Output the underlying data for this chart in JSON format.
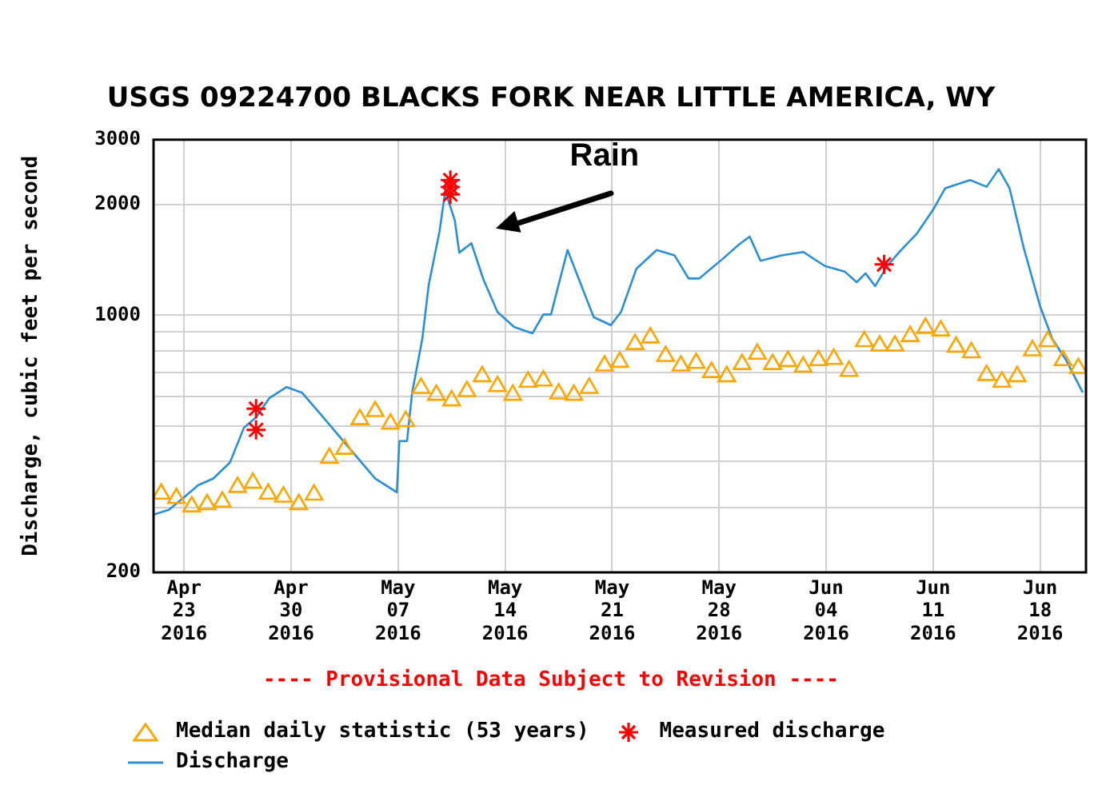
{
  "chart_data": {
    "type": "line",
    "title": "USGS 09224700 BLACKS FORK NEAR LITTLE AMERICA, WY",
    "ylabel": "Discharge, cubic feet per second",
    "annotations": [
      "Rain",
      "---- Provisional Data Subject to Revision ----"
    ],
    "log": true,
    "grid": true,
    "legend": "bottom",
    "xlim": [
      "2016-04-21",
      "2016-06-21"
    ],
    "xticks": [
      {
        "value": "2016-04-23",
        "label": "Apr 23 2016"
      },
      {
        "value": "2016-04-30",
        "label": "Apr 30 2016"
      },
      {
        "value": "2016-05-07",
        "label": "May 07 2016"
      },
      {
        "value": "2016-05-14",
        "label": "May 14 2016"
      },
      {
        "value": "2016-05-21",
        "label": "May 21 2016"
      },
      {
        "value": "2016-05-28",
        "label": "May 28 2016"
      },
      {
        "value": "2016-06-04",
        "label": "Jun 04 2016"
      },
      {
        "value": "2016-06-11",
        "label": "Jun 11 2016"
      },
      {
        "value": "2016-06-18",
        "label": "Jun 18 2016"
      }
    ],
    "ylim": [
      200,
      3000
    ],
    "yticks": [
      200,
      {
        "value": 300,
        "label": null
      },
      {
        "value": 400,
        "label": null
      },
      {
        "value": 500,
        "label": null
      },
      {
        "value": 600,
        "label": null
      },
      {
        "value": 700,
        "label": null
      },
      {
        "value": 800,
        "label": null
      },
      {
        "value": 900,
        "label": null
      },
      1000,
      2000,
      3000
    ],
    "series": [
      {
        "name": "Median daily statistic (53 years)",
        "type": "scatter",
        "marker": "triangle",
        "color": "#ffa500",
        "x": [
          "2016-04-21T12:00",
          "2016-04-22T12:00",
          "2016-04-23T12:00",
          "2016-04-24T12:00",
          "2016-04-25T12:00",
          "2016-04-26T12:00",
          "2016-04-27T12:00",
          "2016-04-28T12:00",
          "2016-04-29T12:00",
          "2016-04-30T12:00",
          "2016-05-01T12:00",
          "2016-05-02T12:00",
          "2016-05-03T12:00",
          "2016-05-04T12:00",
          "2016-05-05T12:00",
          "2016-05-06T12:00",
          "2016-05-07T12:00",
          "2016-05-08T12:00",
          "2016-05-09T12:00",
          "2016-05-10T12:00",
          "2016-05-11T12:00",
          "2016-05-12T12:00",
          "2016-05-13T12:00",
          "2016-05-14T12:00",
          "2016-05-15T12:00",
          "2016-05-16T12:00",
          "2016-05-17T12:00",
          "2016-05-18T12:00",
          "2016-05-19T12:00",
          "2016-05-20T12:00",
          "2016-05-21T12:00",
          "2016-05-22T12:00",
          "2016-05-23T12:00",
          "2016-05-24T12:00",
          "2016-05-25T12:00",
          "2016-05-26T12:00",
          "2016-05-27T12:00",
          "2016-05-28T12:00",
          "2016-05-29T12:00",
          "2016-05-30T12:00",
          "2016-05-31T12:00",
          "2016-06-01T12:00",
          "2016-06-02T12:00",
          "2016-06-03T12:00",
          "2016-06-04T12:00",
          "2016-06-05T12:00",
          "2016-06-06T12:00",
          "2016-06-07T12:00",
          "2016-06-08T12:00",
          "2016-06-09T12:00",
          "2016-06-10T12:00",
          "2016-06-11T12:00",
          "2016-06-12T12:00",
          "2016-06-13T12:00",
          "2016-06-14T12:00",
          "2016-06-15T12:00",
          "2016-06-16T12:00",
          "2016-06-17T12:00",
          "2016-06-18T12:00",
          "2016-06-19T12:00",
          "2016-06-20T12:00"
        ],
        "values": [
          327,
          318,
          302,
          306,
          311,
          341,
          350,
          327,
          321,
          306,
          325,
          409,
          433,
          521,
          548,
          507,
          515,
          634,
          607,
          586,
          621,
          682,
          641,
          607,
          659,
          664,
          612,
          607,
          634,
          729,
          746,
          834,
          869,
          774,
          729,
          741,
          700,
          682,
          736,
          785,
          736,
          750,
          724,
          754,
          760,
          705,
          849,
          826,
          826,
          877,
          923,
          908,
          820,
          792,
          687,
          659,
          682,
          802,
          849,
          754,
          718
        ]
      },
      {
        "name": "Measured discharge",
        "type": "scatter",
        "marker": "cross",
        "color": "#ff0000",
        "x": [
          "2016-04-27T17:00",
          "2016-04-27T17:00",
          "2016-05-10T10:00",
          "2016-05-10T10:00",
          "2016-05-10T10:00",
          "2016-06-07T19:00"
        ],
        "values": [
          557,
          488,
          2330,
          2230,
          2130,
          1374
        ]
      },
      {
        "name": "Discharge",
        "type": "line",
        "marker": "none",
        "color": "#2b8fd6",
        "x": [
          "2016-04-21",
          "2016-04-22",
          "2016-04-23",
          "2016-04-23T22:00",
          "2016-04-24T22:00",
          "2016-04-26",
          "2016-04-26T22:00",
          "2016-04-27T17:00",
          "2016-04-28T14:00",
          "2016-04-29T17:00",
          "2016-04-30T17:00",
          "2016-05-01T22:00",
          "2016-05-03T17:00",
          "2016-05-05T12:00",
          "2016-05-06T22:00",
          "2016-05-07T02:00",
          "2016-05-07T14:00",
          "2016-05-07T22:00",
          "2016-05-08T14:00",
          "2016-05-09",
          "2016-05-09T17:00",
          "2016-05-10T02:00",
          "2016-05-10T17:00",
          "2016-05-11",
          "2016-05-11T19:00",
          "2016-05-12T14:00",
          "2016-05-13T12:00",
          "2016-05-14T14:00",
          "2016-05-15T19:00",
          "2016-05-16T12:00",
          "2016-05-17",
          "2016-05-18T02:00",
          "2016-05-19T19:00",
          "2016-05-20T22:00",
          "2016-05-21T14:00",
          "2016-05-22T14:00",
          "2016-05-23T22:00",
          "2016-05-25T02:00",
          "2016-05-26",
          "2016-05-26T17:00",
          "2016-05-28T07:00",
          "2016-05-29T07:00",
          "2016-05-30",
          "2016-05-30T17:00",
          "2016-06-01T02:00",
          "2016-06-02T12:00",
          "2016-06-03T22:00",
          "2016-06-05T05:00",
          "2016-06-06",
          "2016-06-06T14:00",
          "2016-06-07T05:00",
          "2016-06-08",
          "2016-06-08T19:00",
          "2016-06-09T22:00",
          "2016-06-11",
          "2016-06-11T19:00",
          "2016-06-13T10:00",
          "2016-06-14T12:00",
          "2016-06-15T07:00",
          "2016-06-16",
          "2016-06-16T22:00",
          "2016-06-18",
          "2016-06-18T19:00",
          "2016-06-19T17:00",
          "2016-06-20T19:00"
        ],
        "values": [
          287,
          296,
          320,
          345,
          360,
          398,
          495,
          528,
          596,
          638,
          616,
          539,
          440,
          360,
          330,
          455,
          455,
          616,
          863,
          1208,
          1690,
          2178,
          1810,
          1479,
          1570,
          1250,
          1021,
          929,
          893,
          1005,
          1005,
          1504,
          988,
          940,
          1021,
          1337,
          1504,
          1455,
          1259,
          1259,
          1430,
          1556,
          1636,
          1406,
          1455,
          1486,
          1361,
          1315,
          1230,
          1300,
          1200,
          1361,
          1486,
          1663,
          1936,
          2215,
          2330,
          2235,
          2495,
          2215,
          1530,
          1057,
          863,
          754,
          616
        ]
      }
    ]
  }
}
